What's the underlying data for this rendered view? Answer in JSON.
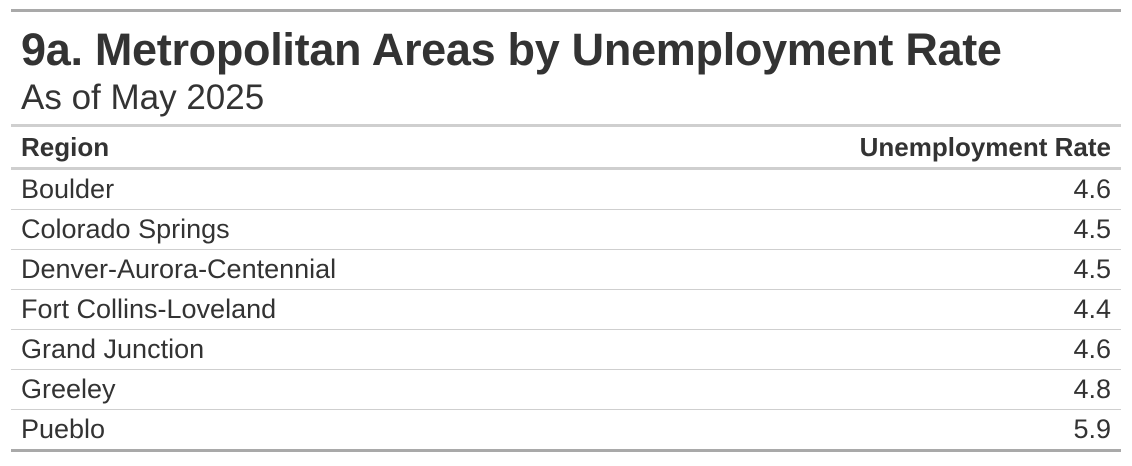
{
  "title": "9a. Metropolitan Areas by Unemployment Rate",
  "subtitle": "As of May 2025",
  "table": {
    "headers": [
      "Region",
      "Unemployment Rate"
    ],
    "rows": [
      {
        "region": "Boulder",
        "rate": "4.6"
      },
      {
        "region": "Colorado Springs",
        "rate": "4.5"
      },
      {
        "region": "Denver-Aurora-Centennial",
        "rate": "4.5"
      },
      {
        "region": "Fort Collins-Loveland",
        "rate": "4.4"
      },
      {
        "region": "Grand Junction",
        "rate": "4.6"
      },
      {
        "region": "Greeley",
        "rate": "4.8"
      },
      {
        "region": "Pueblo",
        "rate": "5.9"
      }
    ]
  },
  "colors": {
    "text": "#333333",
    "rule_dark": "#a9a9a9",
    "rule_light": "#cfcfcf"
  }
}
